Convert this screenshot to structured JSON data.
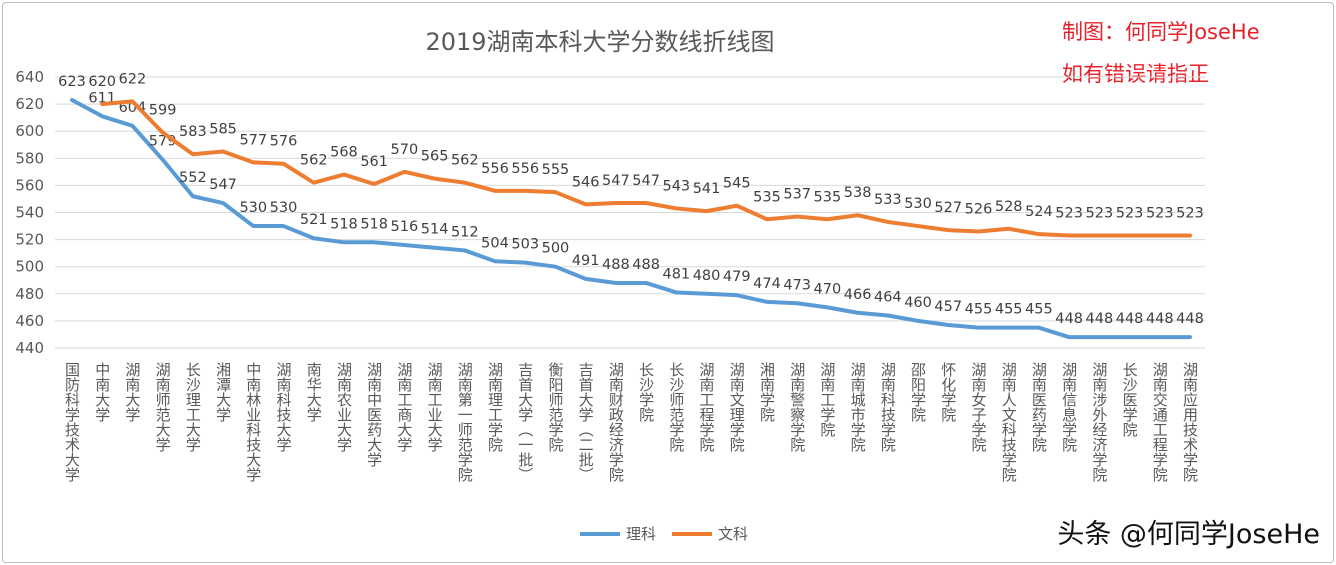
{
  "chart_data": {
    "type": "line",
    "title": "2019湖南本科大学分数线折线图",
    "categories": [
      "国防科学技术大学",
      "中南大学",
      "湖南大学",
      "湖南师范大学",
      "长沙理工大学",
      "湘潭大学",
      "中南林业科技大学",
      "湖南科技大学",
      "南华大学",
      "湖南农业大学",
      "湖南中医药大学",
      "湖南工商大学",
      "湖南工业大学",
      "湖南第一师范学院",
      "湖南理工学院",
      "吉首大学（一批）",
      "衡阳师范学院",
      "吉首大学（二批）",
      "湖南财政经济学院",
      "长沙学院",
      "长沙师范学院",
      "湖南工程学院",
      "湖南文理学院",
      "湘南学院",
      "湖南警察学院",
      "湖南工学院",
      "湖南城市学院",
      "湖南科技学院",
      "邵阳学院",
      "怀化学院",
      "湖南女子学院",
      "湖南人文科技学院",
      "湖南医药学院",
      "湖南信息学院",
      "湖南涉外经济学院",
      "长沙医学院",
      "湖南交通工程学院",
      "湖南应用技术学院"
    ],
    "series": [
      {
        "name": "理科",
        "color": "#5b9bd5",
        "values": [
          623,
          611,
          604,
          579,
          552,
          547,
          530,
          530,
          521,
          518,
          518,
          516,
          514,
          512,
          504,
          503,
          500,
          491,
          488,
          488,
          481,
          480,
          479,
          474,
          473,
          470,
          466,
          464,
          460,
          457,
          455,
          455,
          455,
          448,
          448,
          448,
          448,
          448
        ]
      },
      {
        "name": "文科",
        "color": "#ed7d31",
        "values": [
          null,
          620,
          622,
          599,
          583,
          585,
          577,
          576,
          562,
          568,
          561,
          570,
          565,
          562,
          556,
          556,
          555,
          546,
          547,
          547,
          543,
          541,
          545,
          535,
          537,
          535,
          538,
          533,
          530,
          527,
          526,
          528,
          524,
          523,
          523,
          523,
          523,
          523
        ]
      }
    ],
    "ylim": [
      440,
      640
    ],
    "yticks": [
      440,
      460,
      480,
      500,
      520,
      540,
      560,
      580,
      600,
      620,
      640
    ],
    "grid": true,
    "legend": "bottom",
    "data_labels": true
  },
  "annotation": [
    "制图：何同学JoseHe",
    "如有错误请指正"
  ],
  "watermark": "头条 @何同学JoseHe"
}
